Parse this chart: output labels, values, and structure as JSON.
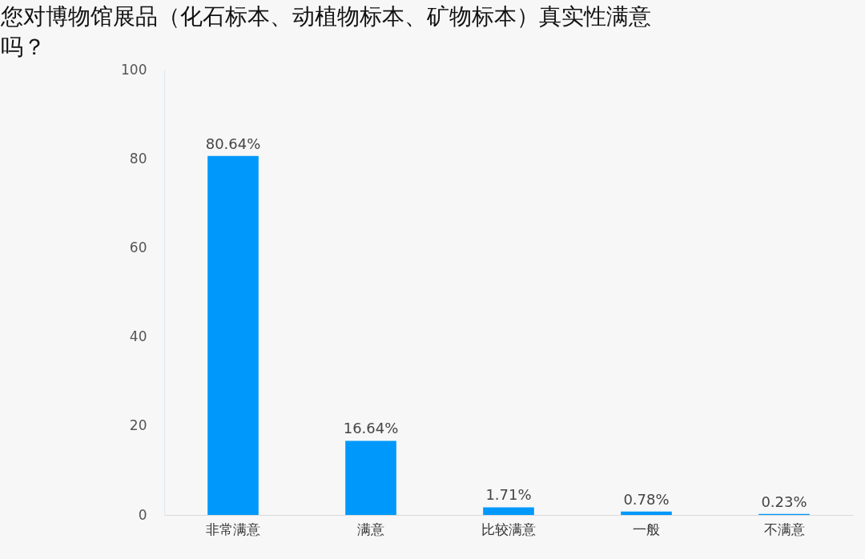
{
  "chart_data": {
    "type": "bar",
    "title": "您对博物馆展品（化石标本、动植物标本、矿物标本）真实性满意吗？",
    "categories": [
      "非常满意",
      "满意",
      "比较满意",
      "一般",
      "不满意"
    ],
    "values": [
      80.64,
      16.64,
      1.71,
      0.78,
      0.23
    ],
    "value_labels": [
      "80.64%",
      "16.64%",
      "1.71%",
      "0.78%",
      "0.23%"
    ],
    "color": "#0098fa",
    "ylim": [
      0,
      100
    ],
    "yticks": [
      0,
      20,
      40,
      60,
      80,
      100
    ],
    "grid": false
  }
}
